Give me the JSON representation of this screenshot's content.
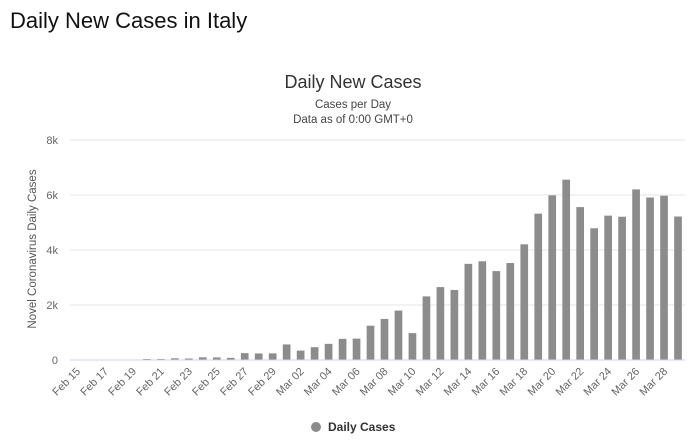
{
  "page_title": "Daily New Cases in Italy",
  "chart_data": {
    "type": "bar",
    "title": "Daily New Cases",
    "subtitle": "Cases per Day",
    "subtitle2": "Data as of 0:00 GMT+0",
    "ylabel": "Novel Coronavirus Daily Cases",
    "xlabel": "",
    "ylim": [
      0,
      8000
    ],
    "yticks": [
      0,
      2000,
      4000,
      6000,
      8000
    ],
    "ytick_labels": [
      "0",
      "2k",
      "4k",
      "6k",
      "8k"
    ],
    "grid": true,
    "legend_position": "bottom-center",
    "bar_color": "#8c8c8c",
    "categories": [
      "Feb 15",
      "Feb 16",
      "Feb 17",
      "Feb 18",
      "Feb 19",
      "Feb 20",
      "Feb 21",
      "Feb 22",
      "Feb 23",
      "Feb 24",
      "Feb 25",
      "Feb 26",
      "Feb 27",
      "Feb 28",
      "Feb 29",
      "Mar 01",
      "Mar 02",
      "Mar 03",
      "Mar 04",
      "Mar 05",
      "Mar 06",
      "Mar 07",
      "Mar 08",
      "Mar 09",
      "Mar 10",
      "Mar 11",
      "Mar 12",
      "Mar 13",
      "Mar 14",
      "Mar 15",
      "Mar 16",
      "Mar 17",
      "Mar 18",
      "Mar 19",
      "Mar 20",
      "Mar 21",
      "Mar 22",
      "Mar 23",
      "Mar 24",
      "Mar 25",
      "Mar 26",
      "Mar 27",
      "Mar 28",
      "Mar 29"
    ],
    "xtick_labels": [
      "Feb 15",
      "Feb 17",
      "Feb 19",
      "Feb 21",
      "Feb 23",
      "Feb 25",
      "Feb 27",
      "Feb 29",
      "Mar 02",
      "Mar 04",
      "Mar 06",
      "Mar 08",
      "Mar 10",
      "Mar 12",
      "Mar 14",
      "Mar 16",
      "Mar 18",
      "Mar 20",
      "Mar 22",
      "Mar 24",
      "Mar 26",
      "Mar 28"
    ],
    "series": [
      {
        "name": "Daily Cases",
        "values": [
          0,
          0,
          0,
          0,
          0,
          1,
          14,
          62,
          53,
          97,
          93,
          78,
          250,
          238,
          240,
          566,
          342,
          466,
          587,
          769,
          778,
          1247,
          1492,
          1797,
          977,
          2313,
          2651,
          2547,
          3497,
          3590,
          3233,
          3526,
          4207,
          5322,
          5986,
          6557,
          5560,
          4789,
          5249,
          5210,
          6203,
          5909,
          5974,
          5217
        ]
      }
    ]
  }
}
